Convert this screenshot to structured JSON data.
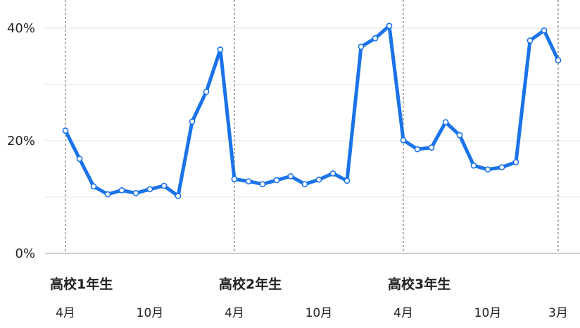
{
  "chart_data": {
    "type": "line",
    "title": "",
    "xlabel": "",
    "ylabel": "",
    "ylim": [
      0,
      40
    ],
    "y_ticks": [
      {
        "value": 0,
        "label": "0%"
      },
      {
        "value": 20,
        "label": "20%"
      },
      {
        "value": 40,
        "label": "40%"
      }
    ],
    "grid": true,
    "grid_values": [
      0,
      10,
      20,
      30,
      40
    ],
    "legend": "none",
    "line_color": "#1a73e8",
    "x_ticks": [
      {
        "index": 0,
        "label": "4月"
      },
      {
        "index": 6,
        "label": "10月"
      },
      {
        "index": 12,
        "label": "4月"
      },
      {
        "index": 18,
        "label": "10月"
      },
      {
        "index": 24,
        "label": "4月"
      },
      {
        "index": 30,
        "label": "10月"
      },
      {
        "index": 35,
        "label": "3月"
      }
    ],
    "groups": [
      {
        "start_index": 0,
        "label": "高校1年生"
      },
      {
        "start_index": 12,
        "label": "高校2年生"
      },
      {
        "start_index": 24,
        "label": "高校3年生"
      }
    ],
    "dividers": [
      0,
      12,
      24,
      35
    ],
    "series": [
      {
        "values": [
          21.8,
          16.8,
          11.9,
          10.5,
          11.2,
          10.7,
          11.4,
          12.0,
          10.2,
          23.4,
          28.7,
          36.2,
          13.2,
          12.8,
          12.3,
          13.0,
          13.7,
          12.3,
          13.1,
          14.2,
          12.9,
          36.7,
          38.2,
          40.4,
          20.1,
          18.5,
          18.8,
          23.3,
          21.0,
          15.6,
          14.9,
          15.3,
          16.2,
          37.8,
          39.6,
          34.3
        ]
      }
    ]
  }
}
